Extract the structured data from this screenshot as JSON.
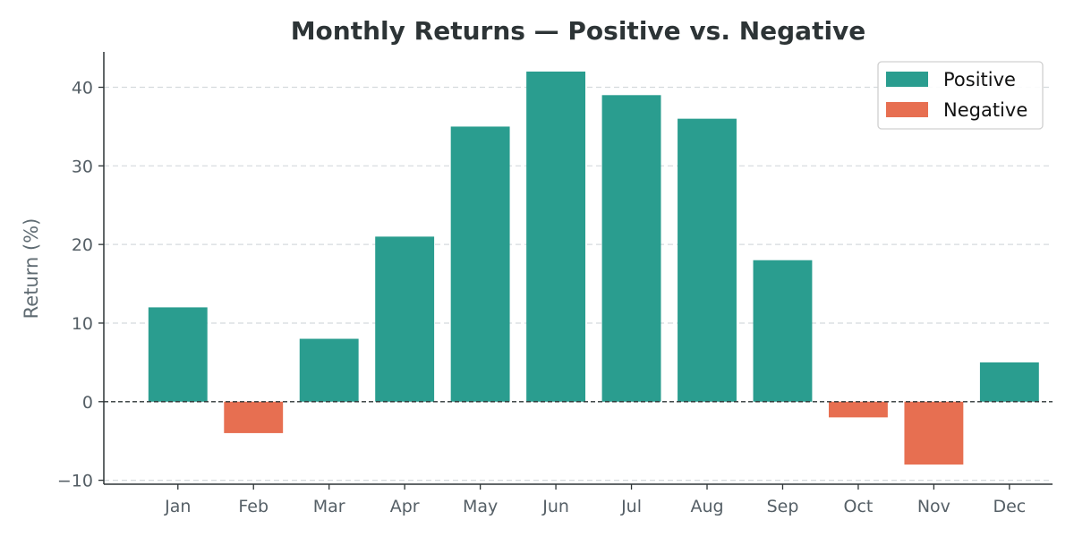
{
  "chart_data": {
    "type": "bar",
    "title": "Monthly Returns — Positive vs. Negative",
    "xlabel": "",
    "ylabel": "Return (%)",
    "categories": [
      "Jan",
      "Feb",
      "Mar",
      "Apr",
      "May",
      "Jun",
      "Jul",
      "Aug",
      "Sep",
      "Oct",
      "Nov",
      "Dec"
    ],
    "values": [
      12,
      -4,
      8,
      21,
      35,
      42,
      39,
      36,
      18,
      -2,
      -8,
      5
    ],
    "ylim": [
      -10.5,
      44.5
    ],
    "yticks": [
      -10,
      0,
      10,
      20,
      30,
      40
    ],
    "ytick_labels": [
      "−10",
      "0",
      "10",
      "20",
      "30",
      "40"
    ],
    "grid": true,
    "zero_line": true,
    "legend": {
      "placement": "top-right",
      "entries": [
        {
          "label": "Positive",
          "color": "#2a9d8f"
        },
        {
          "label": "Negative",
          "color": "#e76f51"
        }
      ]
    },
    "colors": {
      "positive": "#2a9d8f",
      "negative": "#e76f51"
    }
  }
}
